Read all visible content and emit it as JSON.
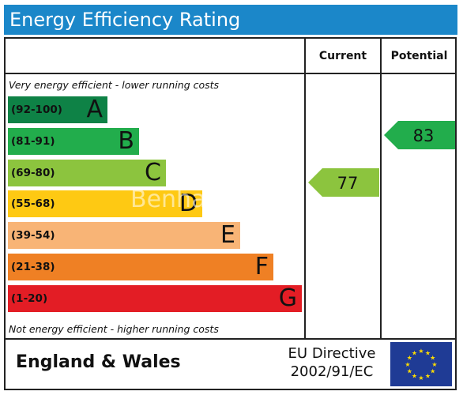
{
  "title": "Energy Efficiency Rating",
  "columns": {
    "current": "Current",
    "potential": "Potential"
  },
  "notes": {
    "top": "Very energy efficient - lower running costs",
    "bottom": "Not energy efficient - higher running costs"
  },
  "footer": {
    "region": "England & Wales",
    "directive_line1": "EU Directive",
    "directive_line2": "2002/91/EC"
  },
  "watermark": "Benha",
  "colors": {
    "title_bar": "#1b87c9",
    "eu_flag": "#1f3b95",
    "eu_stars": "#ffdd00"
  },
  "chart_data": {
    "type": "bar",
    "categories": [
      "(92-100)",
      "(81-91)",
      "(69-80)",
      "(55-68)",
      "(39-54)",
      "(21-38)",
      "(1-20)"
    ],
    "bands": [
      {
        "range": "(92-100)",
        "letter": "A",
        "color": "#0e8246",
        "min": 92,
        "max": 100
      },
      {
        "range": "(81-91)",
        "letter": "B",
        "color": "#22ad4c",
        "min": 81,
        "max": 91
      },
      {
        "range": "(69-80)",
        "letter": "C",
        "color": "#8cc43e",
        "min": 69,
        "max": 80
      },
      {
        "range": "(55-68)",
        "letter": "D",
        "color": "#fec913",
        "min": 55,
        "max": 68
      },
      {
        "range": "(39-54)",
        "letter": "E",
        "color": "#f8b476",
        "min": 39,
        "max": 54
      },
      {
        "range": "(21-38)",
        "letter": "F",
        "color": "#ef8024",
        "min": 21,
        "max": 38
      },
      {
        "range": "(1-20)",
        "letter": "G",
        "color": "#e31d25",
        "min": 1,
        "max": 20
      }
    ],
    "current": {
      "value": 77,
      "band": "C",
      "color": "#8cc43e"
    },
    "potential": {
      "value": 83,
      "band": "B",
      "color": "#22ad4c"
    }
  }
}
